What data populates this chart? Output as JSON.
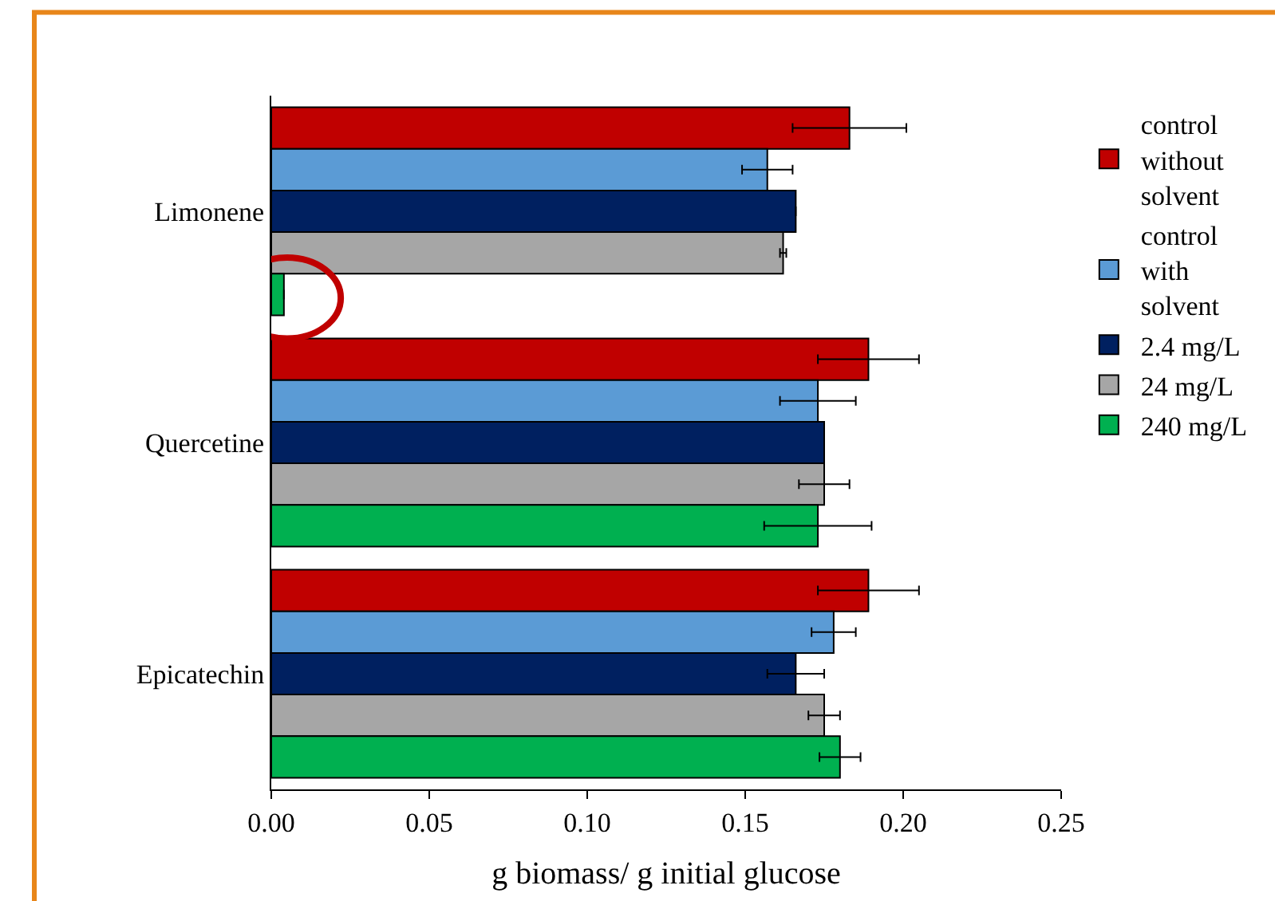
{
  "chart_data": {
    "type": "bar",
    "orientation": "horizontal",
    "xlabel": "g biomass/ g initial glucose",
    "categories": [
      "Limonene",
      "Quercetine",
      "Epicatechin"
    ],
    "series": [
      {
        "name": "control without solvent",
        "color": "#c00000",
        "values": [
          0.183,
          0.189,
          0.189
        ],
        "errors": [
          0.018,
          0.016,
          0.016
        ]
      },
      {
        "name": "control with solvent",
        "color": "#5b9bd5",
        "values": [
          0.157,
          0.173,
          0.178
        ],
        "errors": [
          0.008,
          0.012,
          0.007
        ]
      },
      {
        "name": "2.4 mg/L",
        "color": "#002060",
        "values": [
          0.166,
          0.175,
          0.166
        ],
        "errors": [
          null,
          null,
          0.009
        ]
      },
      {
        "name": "24 mg/L",
        "color": "#a6a6a6",
        "values": [
          0.162,
          0.175,
          0.175
        ],
        "errors": [
          0.001,
          0.008,
          0.005
        ]
      },
      {
        "name": "240 mg/L",
        "color": "#00b050",
        "values": [
          0.004,
          0.173,
          0.18
        ],
        "errors": [
          null,
          0.017,
          0.0065
        ]
      }
    ],
    "xlim": [
      0,
      0.25
    ],
    "xticks": [
      {
        "value": 0,
        "label": "0.00"
      },
      {
        "value": 0.05,
        "label": "0.05"
      },
      {
        "value": 0.1,
        "label": "0.10"
      },
      {
        "value": 0.15,
        "label": "0.15"
      },
      {
        "value": 0.2,
        "label": "0.20"
      },
      {
        "value": 0.25,
        "label": "0.25"
      }
    ],
    "legend": "right"
  }
}
